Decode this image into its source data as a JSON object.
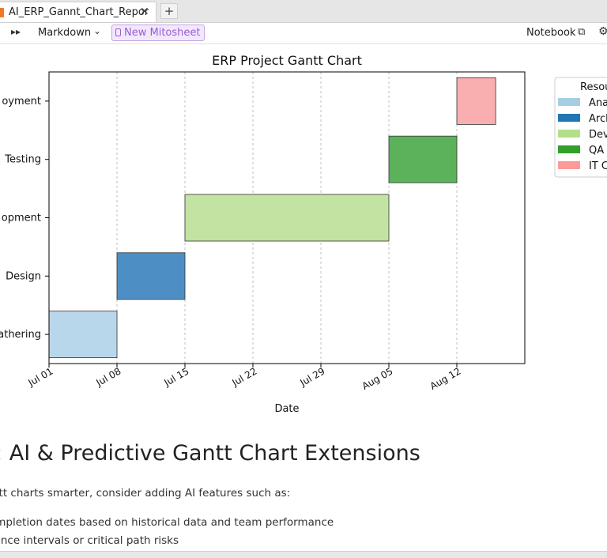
{
  "tabs": [
    {
      "label": "AI_ERP_Gannt_Chart_Repor",
      "close_glyph": "✕",
      "icon": "notebook-icon"
    }
  ],
  "add_tab_glyph": "+",
  "toolbar": {
    "run_all_glyph": "▸▸",
    "cell_type": "Markdown",
    "cell_type_chevron": "⌄",
    "mito_label": "New Mitosheet",
    "kernel_label": "Notebook",
    "open_external_glyph": "⧉",
    "settings_glyph": "⚙"
  },
  "chart_data": {
    "type": "gantt",
    "title": "ERP Project Gantt Chart",
    "xlabel": "Date",
    "ylabel": "",
    "x_ticks": [
      "Jul 01",
      "Jul 08",
      "Jul 15",
      "Jul 22",
      "Jul 29",
      "Aug 05",
      "Aug 12"
    ],
    "y_categories_visible": [
      "athering",
      "Design",
      "opment",
      "Testing",
      "oyment"
    ],
    "xlim": [
      "Jul 01",
      "Aug 19"
    ],
    "grid": "vertical dashed",
    "legend_placement": "outside upper right",
    "legend_title": "Resou",
    "legend_entries_visible": [
      "Ana",
      "Arch",
      "Dev",
      "QA",
      "IT C"
    ],
    "tasks": [
      {
        "label": "athering",
        "start": "Jul 01",
        "end": "Jul 08",
        "color": "#b9d7ea"
      },
      {
        "label": "Design",
        "start": "Jul 08",
        "end": "Jul 15",
        "color": "#4d8fc4"
      },
      {
        "label": "opment",
        "start": "Jul 15",
        "end": "Aug 05",
        "color": "#c2e3a1"
      },
      {
        "label": "Testing",
        "start": "Aug 05",
        "end": "Aug 12",
        "color": "#5cb25a"
      },
      {
        "label": "oyment",
        "start": "Aug 12",
        "end": "Aug 16",
        "color": "#f9aeb0"
      }
    ],
    "legend_colors": [
      "#a6cee3",
      "#1f78b4",
      "#b2df8a",
      "#33a02c",
      "#fb9a99"
    ]
  },
  "markdown": {
    "heading": "s: AI & Predictive Gantt Chart Extensions",
    "paragraph": "ntt charts smarter, consider adding AI features such as:",
    "list_items": [
      "ompletion dates based on historical data and team performance",
      "dence intervals or critical path risks"
    ]
  }
}
